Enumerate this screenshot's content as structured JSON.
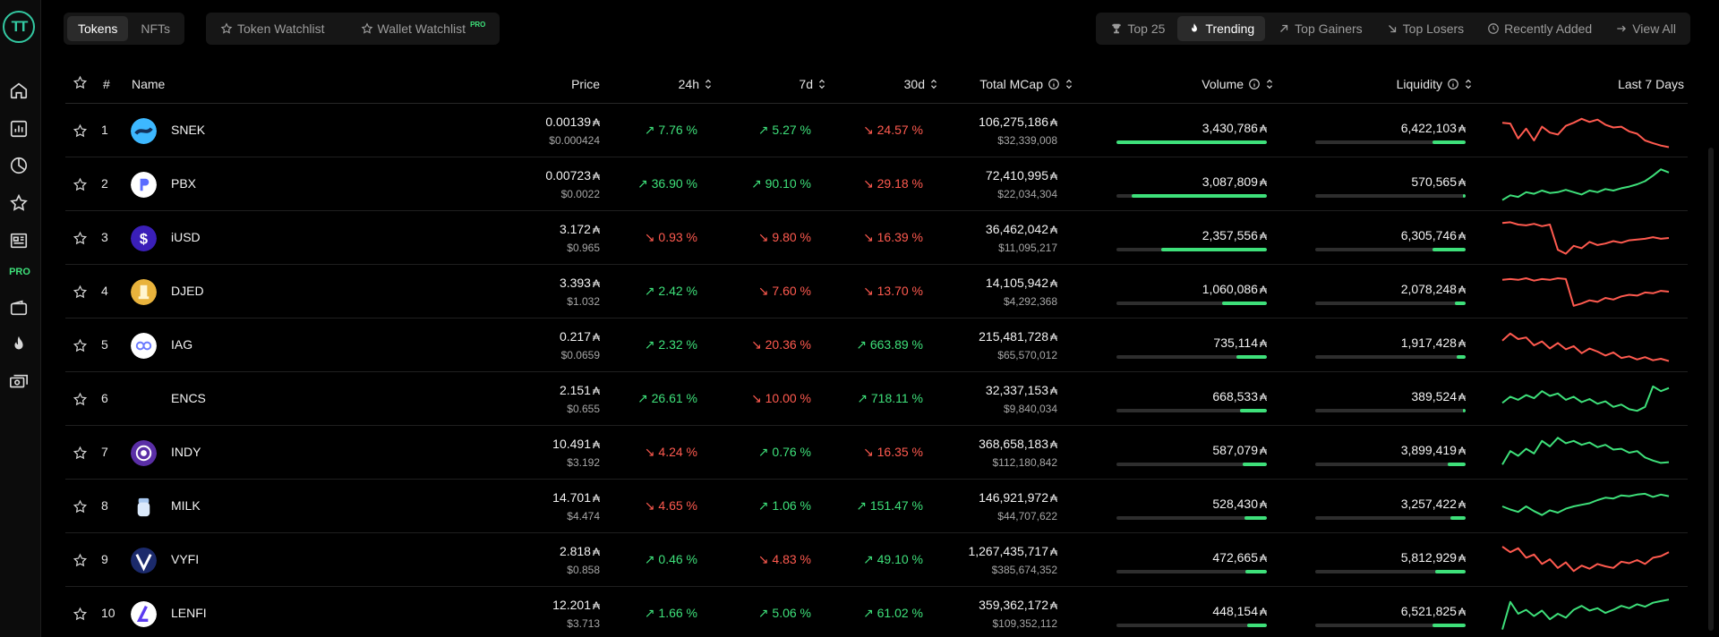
{
  "sidebar": {
    "pro_label": "PRO",
    "icons": [
      "home-icon",
      "chart-icon",
      "pie-icon",
      "star-icon",
      "news-icon",
      "wallet-icon",
      "fire-icon",
      "money-icon"
    ]
  },
  "topbar": {
    "type_tabs": [
      {
        "label": "Tokens",
        "active": true
      },
      {
        "label": "NFTs",
        "active": false
      }
    ],
    "watch_tabs": [
      {
        "label": "Token Watchlist",
        "icon": "star-icon"
      },
      {
        "label": "Wallet Watchlist",
        "icon": "star-icon",
        "badge": "PRO"
      }
    ],
    "filters": [
      {
        "label": "Top 25",
        "icon": "trophy-icon",
        "active": false
      },
      {
        "label": "Trending",
        "icon": "fire-icon",
        "active": true
      },
      {
        "label": "Top Gainers",
        "icon": "arrow-up-right-icon",
        "active": false
      },
      {
        "label": "Top Losers",
        "icon": "arrow-down-right-icon",
        "active": false
      },
      {
        "label": "Recently Added",
        "icon": "clock-icon",
        "active": false
      },
      {
        "label": "View All",
        "icon": "arrow-right-icon",
        "active": false
      }
    ]
  },
  "table": {
    "headers": {
      "rank": "#",
      "name": "Name",
      "price": "Price",
      "h24": "24h",
      "d7": "7d",
      "d30": "30d",
      "mcap": "Total MCap",
      "volume": "Volume",
      "liquidity": "Liquidity",
      "spark": "Last 7 Days"
    },
    "currency_symbol": "₳",
    "rows": [
      {
        "rank": "1",
        "name": "SNEK",
        "icon": "snek",
        "price": "0.00139",
        "price_usd": "$0.000424",
        "h24": "7.76 %",
        "h24_dir": "up",
        "d7": "5.27 %",
        "d7_dir": "up",
        "d30": "24.57 %",
        "d30_dir": "down",
        "mcap": "106,275,186",
        "mcap_usd": "$32,339,008",
        "volume": "3,430,786",
        "volume_frac": 1.0,
        "liquidity": "6,422,103",
        "liquidity_frac": 0.22,
        "spark_dir": "down",
        "spark": [
          70,
          68,
          30,
          55,
          25,
          60,
          45,
          40,
          62,
          70,
          80,
          72,
          78,
          65,
          58,
          60,
          48,
          42,
          25,
          18,
          12,
          8
        ]
      },
      {
        "rank": "2",
        "name": "PBX",
        "icon": "pbx",
        "price": "0.00723",
        "price_usd": "$0.0022",
        "h24": "36.90 %",
        "h24_dir": "up",
        "d7": "90.10 %",
        "d7_dir": "up",
        "d30": "29.18 %",
        "d30_dir": "down",
        "mcap": "72,410,995",
        "mcap_usd": "$22,034,304",
        "volume": "3,087,809",
        "volume_frac": 0.9,
        "liquidity": "570,565",
        "liquidity_frac": 0.02,
        "spark_dir": "up",
        "spark": [
          10,
          22,
          18,
          30,
          26,
          34,
          28,
          30,
          36,
          30,
          24,
          34,
          30,
          38,
          34,
          40,
          44,
          50,
          58,
          72,
          88,
          80
        ]
      },
      {
        "rank": "3",
        "name": "iUSD",
        "icon": "iusd",
        "price": "3.172",
        "price_usd": "$0.965",
        "h24": "0.93 %",
        "h24_dir": "down",
        "d7": "9.80 %",
        "d7_dir": "down",
        "d30": "16.39 %",
        "d30_dir": "down",
        "mcap": "36,462,042",
        "mcap_usd": "$11,095,217",
        "volume": "2,357,556",
        "volume_frac": 0.7,
        "liquidity": "6,305,746",
        "liquidity_frac": 0.22,
        "spark_dir": "down",
        "spark": [
          88,
          90,
          84,
          82,
          86,
          80,
          84,
          20,
          10,
          30,
          24,
          40,
          32,
          36,
          42,
          38,
          44,
          46,
          48,
          52,
          48,
          50
        ]
      },
      {
        "rank": "4",
        "name": "DJED",
        "icon": "djed",
        "price": "3.393",
        "price_usd": "$1.032",
        "h24": "2.42 %",
        "h24_dir": "up",
        "d7": "7.60 %",
        "d7_dir": "down",
        "d30": "13.70 %",
        "d30_dir": "down",
        "mcap": "14,105,942",
        "mcap_usd": "$4,292,368",
        "volume": "1,060,086",
        "volume_frac": 0.3,
        "liquidity": "2,078,248",
        "liquidity_frac": 0.07,
        "spark_dir": "down",
        "spark": [
          80,
          82,
          80,
          84,
          78,
          82,
          80,
          84,
          82,
          14,
          20,
          28,
          24,
          34,
          30,
          38,
          42,
          40,
          48,
          46,
          52,
          50
        ]
      },
      {
        "rank": "5",
        "name": "IAG",
        "icon": "iag",
        "price": "0.217",
        "price_usd": "$0.0659",
        "h24": "2.32 %",
        "h24_dir": "up",
        "d7": "20.36 %",
        "d7_dir": "down",
        "d30": "663.89 %",
        "d30_dir": "up",
        "mcap": "215,481,728",
        "mcap_usd": "$65,570,012",
        "volume": "735,114",
        "volume_frac": 0.2,
        "liquidity": "1,917,428",
        "liquidity_frac": 0.06,
        "spark_dir": "down",
        "spark": [
          62,
          80,
          66,
          70,
          50,
          60,
          42,
          56,
          40,
          48,
          30,
          42,
          34,
          24,
          32,
          18,
          22,
          14,
          20,
          12,
          16,
          10
        ]
      },
      {
        "rank": "6",
        "name": "ENCS",
        "icon": "none",
        "price": "2.151",
        "price_usd": "$0.655",
        "h24": "26.61 %",
        "h24_dir": "up",
        "d7": "10.00 %",
        "d7_dir": "down",
        "d30": "718.11 %",
        "d30_dir": "up",
        "mcap": "32,337,153",
        "mcap_usd": "$9,840,034",
        "volume": "668,533",
        "volume_frac": 0.18,
        "liquidity": "389,524",
        "liquidity_frac": 0.01,
        "spark_dir": "up",
        "spark": [
          40,
          56,
          48,
          60,
          52,
          70,
          58,
          64,
          48,
          56,
          42,
          50,
          38,
          44,
          30,
          36,
          24,
          20,
          30,
          82,
          70,
          78
        ]
      },
      {
        "rank": "7",
        "name": "INDY",
        "icon": "indy",
        "price": "10.491",
        "price_usd": "$3.192",
        "h24": "4.24 %",
        "h24_dir": "down",
        "d7": "0.76 %",
        "d7_dir": "up",
        "d30": "16.35 %",
        "d30_dir": "down",
        "mcap": "368,658,183",
        "mcap_usd": "$112,180,842",
        "volume": "587,079",
        "volume_frac": 0.16,
        "liquidity": "3,899,419",
        "liquidity_frac": 0.12,
        "spark_dir": "up",
        "spark": [
          20,
          54,
          42,
          60,
          48,
          80,
          66,
          88,
          74,
          80,
          70,
          76,
          64,
          70,
          58,
          60,
          50,
          54,
          38,
          30,
          24,
          26
        ]
      },
      {
        "rank": "8",
        "name": "MILK",
        "icon": "milk",
        "price": "14.701",
        "price_usd": "$4.474",
        "h24": "4.65 %",
        "h24_dir": "down",
        "d7": "1.06 %",
        "d7_dir": "up",
        "d30": "151.47 %",
        "d30_dir": "up",
        "mcap": "146,921,972",
        "mcap_usd": "$44,707,622",
        "volume": "528,430",
        "volume_frac": 0.15,
        "liquidity": "3,257,422",
        "liquidity_frac": 0.1,
        "spark_dir": "up",
        "spark": [
          50,
          42,
          36,
          50,
          38,
          28,
          40,
          34,
          44,
          50,
          54,
          58,
          66,
          72,
          70,
          78,
          76,
          80,
          82,
          74,
          80,
          76
        ]
      },
      {
        "rank": "9",
        "name": "VYFI",
        "icon": "vyfi",
        "price": "2.818",
        "price_usd": "$0.858",
        "h24": "0.46 %",
        "h24_dir": "up",
        "d7": "4.83 %",
        "d7_dir": "down",
        "d30": "49.10 %",
        "d30_dir": "up",
        "mcap": "1,267,435,717",
        "mcap_usd": "$385,674,352",
        "volume": "472,665",
        "volume_frac": 0.14,
        "liquidity": "5,812,929",
        "liquidity_frac": 0.2,
        "spark_dir": "down",
        "spark": [
          84,
          70,
          80,
          56,
          64,
          40,
          52,
          30,
          44,
          22,
          36,
          28,
          40,
          34,
          30,
          46,
          42,
          50,
          40,
          56,
          60,
          70
        ]
      },
      {
        "rank": "10",
        "name": "LENFI",
        "icon": "lenfi",
        "price": "12.201",
        "price_usd": "$3.713",
        "h24": "1.66 %",
        "h24_dir": "up",
        "d7": "5.06 %",
        "d7_dir": "up",
        "d30": "61.02 %",
        "d30_dir": "up",
        "mcap": "359,362,172",
        "mcap_usd": "$109,352,112",
        "volume": "448,154",
        "volume_frac": 0.13,
        "liquidity": "6,521,825",
        "liquidity_frac": 0.22,
        "spark_dir": "up",
        "spark": [
          10,
          80,
          50,
          60,
          44,
          58,
          36,
          50,
          40,
          60,
          70,
          58,
          64,
          52,
          60,
          70,
          64,
          74,
          68,
          78,
          82,
          86
        ]
      }
    ]
  },
  "colors": {
    "up": "#3ee07a",
    "down": "#ff5a4f",
    "accent": "#33c9a2"
  }
}
